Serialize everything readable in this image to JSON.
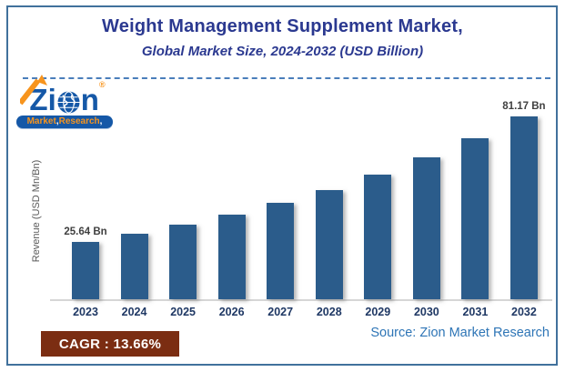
{
  "header": {
    "title": "Weight Management Supplement Market,",
    "subtitle": "Global Market Size, 2024-2032 (USD Billion)"
  },
  "logo": {
    "brand_z": "Z",
    "brand_i": "i",
    "brand_n": "n",
    "registered": "®",
    "word1": "Market",
    "word2": "Research",
    "comma": ",",
    "brand_color": "#1558A7",
    "accent_color": "#F7941D"
  },
  "chart_data": {
    "type": "bar",
    "title": "Weight Management Supplement Market, Global Market Size, 2024-2032 (USD Billion)",
    "categories": [
      "2023",
      "2024",
      "2025",
      "2026",
      "2027",
      "2028",
      "2029",
      "2030",
      "2031",
      "2032"
    ],
    "values": [
      25.64,
      29.14,
      33.12,
      37.65,
      42.79,
      48.64,
      55.28,
      62.83,
      71.41,
      81.17
    ],
    "data_labels": [
      "25.64 Bn",
      "",
      "",
      "",
      "",
      "",
      "",
      "",
      "",
      "81.17 Bn"
    ],
    "unit": "USD Billion",
    "ylabel": "Revenue (USD Mn/Bn)",
    "ylim": [
      0,
      85
    ],
    "grid": false,
    "legend": false,
    "bar_color": "#2B5C8B"
  },
  "footer": {
    "cagr_label": "CAGR : 13.66%",
    "source": "Source: Zion Market Research"
  }
}
